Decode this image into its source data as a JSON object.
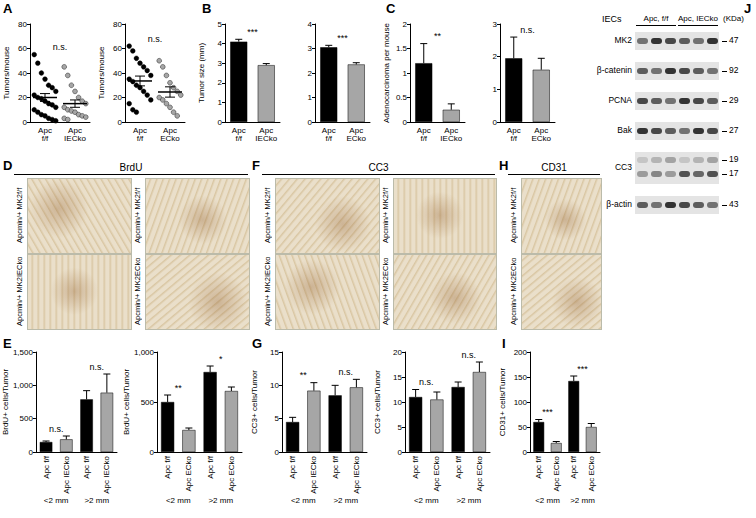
{
  "panel_labels": [
    "A",
    "B",
    "C",
    "D",
    "E",
    "F",
    "G",
    "H",
    "I",
    "J"
  ],
  "chart_data": [
    {
      "type": "scatter",
      "y_label": "Tumors/mouse",
      "categories": [
        "Apc f/f",
        "Apc IECko"
      ],
      "points": [
        [
          55,
          48,
          40,
          35,
          30,
          28,
          25,
          22,
          20,
          19,
          17,
          15,
          14,
          12,
          10,
          8,
          6,
          5,
          3,
          2,
          1
        ],
        [
          45,
          38,
          30,
          25,
          20,
          17,
          15,
          12,
          10,
          9,
          8,
          6,
          5,
          4,
          3,
          2
        ]
      ],
      "means": [
        20,
        15
      ],
      "errors": [
        3.2,
        3
      ],
      "colors": [
        "#000000",
        "#a6a6a6"
      ],
      "ylim": [
        0,
        80
      ],
      "yticks": [
        0,
        20,
        40,
        60,
        80
      ],
      "significance": [
        {
          "label": "n.s.",
          "pair": [
            0,
            1
          ]
        }
      ]
    },
    {
      "type": "scatter",
      "y_label": "Tumors/mouse",
      "categories": [
        "Apc f/f",
        "Apc ECko"
      ],
      "points": [
        [
          62,
          58,
          52,
          48,
          45,
          42,
          38,
          35,
          33,
          30,
          28,
          25,
          22,
          18,
          15,
          10,
          8
        ],
        [
          50,
          45,
          38,
          32,
          28,
          25,
          22,
          20,
          18,
          15,
          12,
          8,
          5
        ]
      ],
      "means": [
        33.5,
        24.5
      ],
      "errors": [
        4,
        4.2
      ],
      "colors": [
        "#000000",
        "#a6a6a6"
      ],
      "ylim": [
        0,
        80
      ],
      "yticks": [
        0,
        20,
        40,
        60,
        80
      ],
      "significance": [
        {
          "label": "n.s.",
          "pair": [
            0,
            1
          ]
        }
      ]
    },
    {
      "type": "bar",
      "y_label": "Tumor size (mm)",
      "categories": [
        "Apc f/f",
        "Apc IECko"
      ],
      "values": [
        4.1,
        2.9
      ],
      "errors": [
        0.12,
        0.08
      ],
      "colors": [
        "#000000",
        "#a6a6a6"
      ],
      "ylim": [
        0,
        5
      ],
      "yticks": [
        0,
        1,
        2,
        3,
        4,
        5
      ],
      "significance": [
        {
          "label": "***",
          "pair": [
            0,
            1
          ]
        }
      ]
    },
    {
      "type": "bar",
      "categories": [
        "Apc f/f",
        "Apc ECko"
      ],
      "values": [
        3.05,
        2.35
      ],
      "errors": [
        0.08,
        0.07
      ],
      "colors": [
        "#000000",
        "#a6a6a6"
      ],
      "ylim": [
        0,
        4
      ],
      "yticks": [
        0,
        1,
        2,
        3,
        4
      ],
      "significance": [
        {
          "label": "***",
          "pair": [
            0,
            1
          ]
        }
      ]
    },
    {
      "type": "bar",
      "y_label": "Adenocarcinoma per mouse",
      "categories": [
        "Apc f/f",
        "Apc IECko"
      ],
      "values": [
        1.2,
        0.25
      ],
      "errors": [
        0.4,
        0.12
      ],
      "colors": [
        "#000000",
        "#a6a6a6"
      ],
      "ylim": [
        0,
        2
      ],
      "yticks": [
        0,
        0.5,
        1,
        1.5,
        2
      ],
      "significance": [
        {
          "label": "**",
          "pair": [
            0,
            1
          ]
        }
      ]
    },
    {
      "type": "bar",
      "categories": [
        "Apc f/f",
        "Apc ECko"
      ],
      "values": [
        1.95,
        1.6
      ],
      "errors": [
        0.65,
        0.35
      ],
      "colors": [
        "#000000",
        "#a6a6a6"
      ],
      "ylim": [
        0,
        3
      ],
      "yticks": [
        0,
        1,
        2,
        3
      ],
      "significance": [
        {
          "label": "n.s.",
          "pair": [
            0,
            1
          ]
        }
      ]
    },
    {
      "type": "bar",
      "y_label": "BrdU+ cells/Tumor",
      "categories": [
        "Apc f/f",
        "Apc IECko",
        "Apc f/f",
        "Apc IECko"
      ],
      "groups": [
        "<2 mm",
        ">2 mm"
      ],
      "values": [
        150,
        190,
        790,
        890
      ],
      "errors": [
        15,
        50,
        130,
        280
      ],
      "colors": [
        "#000000",
        "#a6a6a6",
        "#000000",
        "#a6a6a6"
      ],
      "ylim": [
        0,
        1500
      ],
      "yticks": [
        0,
        500,
        1000,
        1500
      ],
      "significance": [
        {
          "label": "n.s.",
          "pair": [
            0,
            1
          ]
        },
        {
          "label": "n.s.",
          "pair": [
            2,
            3
          ]
        }
      ]
    },
    {
      "type": "bar",
      "y_label": "BrdU+ cells/Tumor",
      "categories": [
        "Apc f/f",
        "Apc ECko",
        "Apc f/f",
        "Apc ECko"
      ],
      "groups": [
        "<2 mm",
        ">2 mm"
      ],
      "values": [
        500,
        220,
        800,
        610
      ],
      "errors": [
        70,
        20,
        60,
        40
      ],
      "colors": [
        "#000000",
        "#a6a6a6",
        "#000000",
        "#a6a6a6"
      ],
      "ylim": [
        0,
        1000
      ],
      "yticks": [
        0,
        500,
        1000
      ],
      "significance": [
        {
          "label": "**",
          "pair": [
            0,
            1
          ]
        },
        {
          "label": "*",
          "pair": [
            2,
            3
          ]
        }
      ]
    },
    {
      "type": "bar",
      "y_label": "CC3+ cells/Tumor",
      "categories": [
        "Apc f/f",
        "Apc IECko",
        "Apc f/f",
        "Apc IECko"
      ],
      "groups": [
        "<2 mm",
        ">2 mm"
      ],
      "values": [
        4.5,
        9.2,
        8.5,
        9.7
      ],
      "errors": [
        0.7,
        1.2,
        1.5,
        1.2
      ],
      "colors": [
        "#000000",
        "#a6a6a6",
        "#000000",
        "#a6a6a6"
      ],
      "ylim": [
        0,
        15
      ],
      "yticks": [
        0,
        5,
        10,
        15
      ],
      "significance": [
        {
          "label": "**",
          "pair": [
            0,
            1
          ]
        },
        {
          "label": "n.s.",
          "pair": [
            2,
            3
          ]
        }
      ]
    },
    {
      "type": "bar",
      "y_label": "CC3+ cells/Tumor",
      "categories": [
        "Apc f/f",
        "Apc ECko",
        "Apc f/f",
        "Apc ECko"
      ],
      "groups": [
        "<2 mm",
        ">2 mm"
      ],
      "values": [
        11,
        10.5,
        13,
        16
      ],
      "errors": [
        1.5,
        1.5,
        1,
        2
      ],
      "colors": [
        "#000000",
        "#a6a6a6",
        "#000000",
        "#a6a6a6"
      ],
      "ylim": [
        0,
        20
      ],
      "yticks": [
        0,
        5,
        10,
        15,
        20
      ],
      "significance": [
        {
          "label": "n.s.",
          "pair": [
            0,
            1
          ]
        },
        {
          "label": "n.s.",
          "pair": [
            2,
            3
          ]
        }
      ]
    },
    {
      "type": "bar",
      "y_label": "CD31+ cells/Tumor",
      "categories": [
        "Apc f/f",
        "Apc ECko",
        "Apc f/f",
        "Apc ECko"
      ],
      "groups": [
        "<2 mm",
        ">2 mm"
      ],
      "values": [
        60,
        18,
        142,
        50
      ],
      "errors": [
        5,
        3,
        10,
        7
      ],
      "colors": [
        "#000000",
        "#a6a6a6",
        "#000000",
        "#a6a6a6"
      ],
      "ylim": [
        0,
        200
      ],
      "yticks": [
        0,
        50,
        100,
        150,
        200
      ],
      "significance": [
        {
          "label": "***",
          "pair": [
            0,
            1
          ]
        },
        {
          "label": "***",
          "pair": [
            2,
            3
          ]
        }
      ]
    }
  ],
  "images": [
    {
      "title": "BrdU",
      "cells": [
        [
          "Apcmin/+ MK2f/f",
          "Apcmin/+ MK2f/f"
        ],
        [
          "Apcmin/+ MK2IECko",
          "Apcmin/+ MK2ECko"
        ]
      ]
    },
    {
      "title": "CC3",
      "cells": [
        [
          "Apcmin/+ MK2f/f",
          "Apcmin/+ MK2f/f"
        ],
        [
          "Apcmin/+ MK2IECko",
          "Apcmin/+ MK2ECko"
        ]
      ]
    },
    {
      "title": "CD31",
      "cells": [
        [
          "Apcmin/+ MK2f/f"
        ],
        [
          "Apcmin/+ MK2ECko"
        ]
      ]
    }
  ],
  "western_blot": {
    "header": "IECs",
    "unit": "(KDa)",
    "lanes": [
      {
        "label": "Apc, f/f",
        "count": 3
      },
      {
        "label": "Apc, IECko",
        "count": 3
      }
    ],
    "rows": [
      {
        "label": "MK2",
        "kda": [
          47
        ]
      },
      {
        "label": "β-catenin",
        "kda": [
          92
        ]
      },
      {
        "label": "PCNA",
        "kda": [
          29
        ]
      },
      {
        "label": "Bak",
        "kda": [
          27
        ]
      },
      {
        "label": "CC3",
        "kda": [
          19,
          17
        ]
      },
      {
        "label": "β-actin",
        "kda": [
          43
        ]
      }
    ]
  }
}
